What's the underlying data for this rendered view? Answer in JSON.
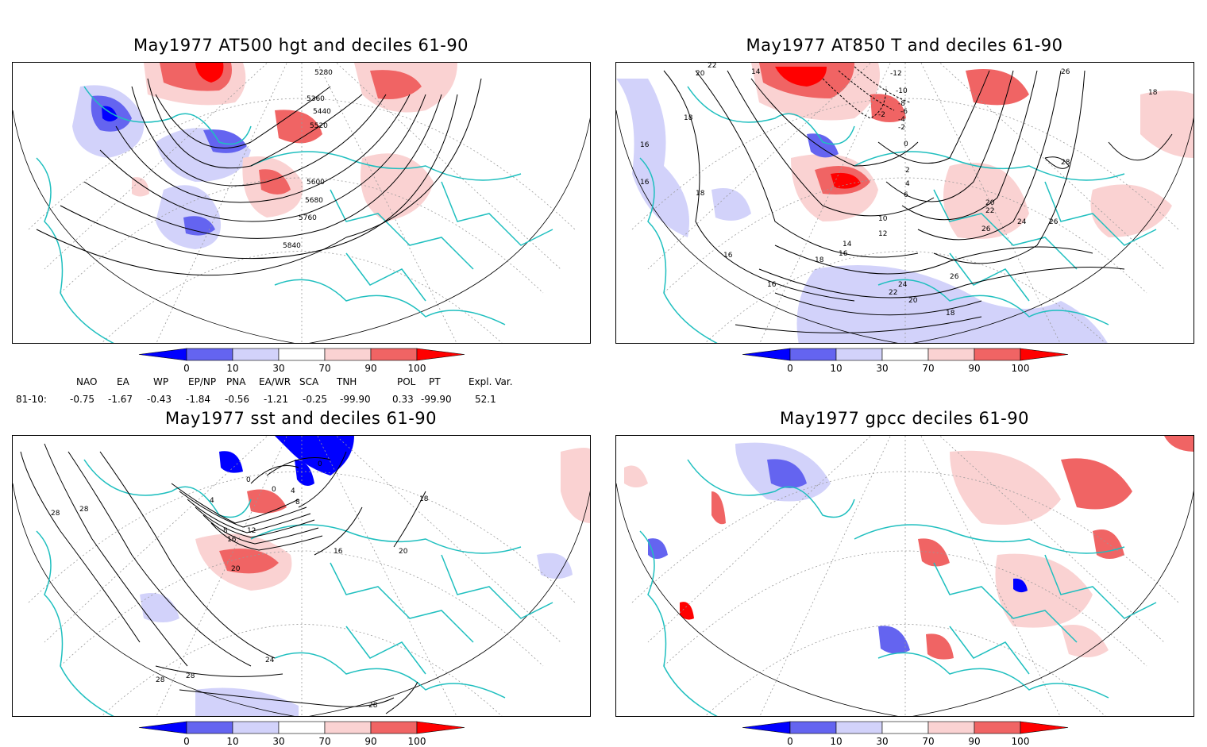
{
  "panels": [
    {
      "id": "z500",
      "title": "May1977 AT500 hgt and deciles 61-90",
      "contour_labels": [
        "5280",
        "5360",
        "5440",
        "5520",
        "5600",
        "5680",
        "5760",
        "5840"
      ]
    },
    {
      "id": "t850",
      "title": "May1977 AT850 T and deciles 61-90",
      "contour_labels": [
        "22",
        "20",
        "18",
        "16",
        "18",
        "16",
        "-12",
        "-10",
        "-8",
        "-6",
        "-4",
        "-2",
        "-2",
        "0",
        "2",
        "4",
        "6",
        "10",
        "12",
        "14",
        "16",
        "18",
        "20",
        "22",
        "24",
        "26",
        "26",
        "28",
        "16",
        "14",
        "18",
        "26",
        "26",
        "24",
        "22",
        "20",
        "18",
        "16"
      ]
    },
    {
      "id": "sst",
      "title": "May1977 sst and deciles 61-90",
      "contour_labels": [
        "28",
        "28",
        "0",
        "0",
        "0",
        "4",
        "8",
        "4",
        "8",
        "12",
        "16",
        "16",
        "20",
        "18",
        "20",
        "24",
        "28",
        "28",
        "28"
      ]
    },
    {
      "id": "gpcc",
      "title": "May1977 gpcc deciles 61-90",
      "contour_labels": []
    }
  ],
  "colorbar": {
    "ticks": [
      "0",
      "10",
      "30",
      "70",
      "90",
      "100"
    ],
    "colors": [
      "#0000ff",
      "#6464f0",
      "#d2d2fa",
      "#ffffff",
      "#fad2d2",
      "#f06464",
      "#ff0000"
    ]
  },
  "indices": {
    "headers": [
      "NAO",
      "EA",
      "WP",
      "EP/NP",
      "PNA",
      "EA/WR",
      "SCA",
      "TNH",
      "POL",
      "PT",
      "Expl. Var."
    ],
    "row_label": "81-10:",
    "values": [
      "-0.75",
      "-1.67",
      "-0.43",
      "-1.84",
      "-0.56",
      "-1.21",
      "-0.25",
      "-99.90",
      "0.33",
      "-99.90",
      "52.1"
    ]
  },
  "colors": {
    "coast": "#1fbfbf",
    "contour": "#000000",
    "grid": "#999999"
  }
}
